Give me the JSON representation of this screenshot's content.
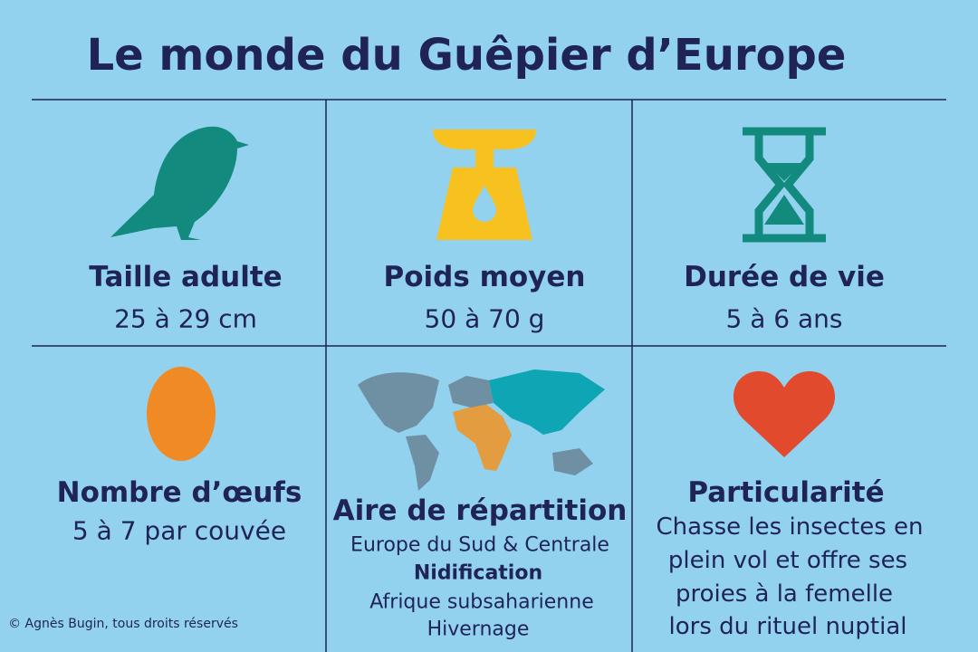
{
  "header": {
    "title": "Le monde du Guêpier d’Europe"
  },
  "cells": [
    {
      "title": "Taille adulte",
      "text": [
        "25 à 29 cm"
      ]
    },
    {
      "title": "Poids moyen",
      "text": [
        "50 à 70 g"
      ]
    },
    {
      "title": "Durée de vie",
      "text": [
        "5 à 6 ans"
      ]
    },
    {
      "title": "Nombre d’œufs",
      "text": [
        "5 à 7 par couvée"
      ]
    },
    {
      "title": "Aire de répartition",
      "text": [
        "Europe du Sud & Centrale",
        "Nidification",
        "Afrique subsaharienne",
        "Hivernage"
      ]
    },
    {
      "title": "Particularité",
      "text": [
        "Chasse les insectes en",
        "plein vol et offre ses",
        "proies à la femelle",
        "lors du rituel nuptial"
      ]
    }
  ],
  "footer": {
    "credit": "© Agnès Bugin, tous droits réservés"
  }
}
